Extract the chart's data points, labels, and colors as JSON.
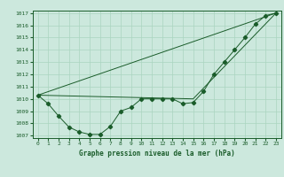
{
  "title": "Graphe pression niveau de la mer (hPa)",
  "bg_color": "#cce8dd",
  "grid_color": "#aad4c0",
  "line_color": "#1a5c2a",
  "xlim": [
    -0.5,
    23.5
  ],
  "ylim": [
    1006.8,
    1017.2
  ],
  "xticks": [
    0,
    1,
    2,
    3,
    4,
    5,
    6,
    7,
    8,
    9,
    10,
    11,
    12,
    13,
    14,
    15,
    16,
    17,
    18,
    19,
    20,
    21,
    22,
    23
  ],
  "yticks": [
    1007,
    1008,
    1009,
    1010,
    1011,
    1012,
    1013,
    1014,
    1015,
    1016,
    1017
  ],
  "series1": {
    "x": [
      0,
      1,
      2,
      3,
      4,
      5,
      6,
      7,
      8,
      9,
      10,
      11,
      12,
      13,
      14,
      15,
      16,
      17,
      18,
      19,
      20,
      21,
      22,
      23
    ],
    "y": [
      1010.3,
      1009.6,
      1008.6,
      1007.7,
      1007.3,
      1007.1,
      1007.1,
      1007.75,
      1009.0,
      1009.3,
      1010.0,
      1010.0,
      1010.0,
      1010.0,
      1009.6,
      1009.7,
      1010.6,
      1012.0,
      1013.0,
      1014.0,
      1015.0,
      1016.1,
      1016.8,
      1017.0
    ]
  },
  "series2": {
    "x": [
      0,
      23
    ],
    "y": [
      1010.3,
      1017.0
    ]
  },
  "series3": {
    "x": [
      0,
      15,
      23
    ],
    "y": [
      1010.3,
      1010.0,
      1017.0
    ]
  }
}
